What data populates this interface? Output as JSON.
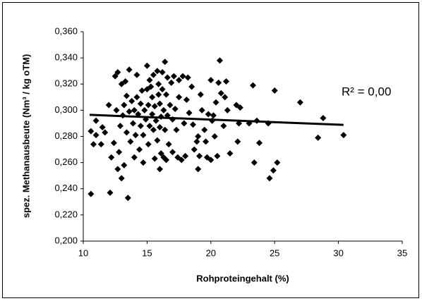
{
  "chart_data": {
    "type": "scatter",
    "x_label": "Rohproteingehalt (%)",
    "y_label": "spez. Methanausbeute (Nm³ / kg oTM)",
    "annotation": "R² = 0,00",
    "color": "#000000",
    "xlim": [
      10,
      35
    ],
    "xticks": [
      10,
      15,
      20,
      25,
      30,
      35
    ],
    "ylim": [
      0.2,
      0.36
    ],
    "yticks": [
      {
        "value": 0.2,
        "label": "0,200"
      },
      {
        "value": 0.22,
        "label": "0,220"
      },
      {
        "value": 0.24,
        "label": "0,240"
      },
      {
        "value": 0.26,
        "label": "0,260"
      },
      {
        "value": 0.28,
        "label": "0,280"
      },
      {
        "value": 0.3,
        "label": "0,300"
      },
      {
        "value": 0.32,
        "label": "0,320"
      },
      {
        "value": 0.34,
        "label": "0,340"
      },
      {
        "value": 0.36,
        "label": "0,360"
      }
    ],
    "grid": false,
    "x": [
      10.6,
      10.6,
      10.8,
      11.0,
      11.0,
      11.4,
      11.5,
      11.7,
      12.0,
      12.1,
      12.2,
      12.4,
      12.5,
      12.6,
      12.7,
      12.7,
      12.8,
      12.9,
      13.0,
      13.0,
      13.1,
      13.2,
      13.2,
      13.3,
      13.4,
      13.4,
      13.5,
      13.6,
      13.6,
      13.7,
      13.8,
      13.9,
      14.0,
      14.0,
      14.1,
      14.2,
      14.2,
      14.3,
      14.4,
      14.5,
      14.5,
      14.6,
      14.7,
      14.7,
      14.8,
      14.9,
      15.0,
      15.0,
      15.1,
      15.1,
      15.2,
      15.2,
      15.3,
      15.4,
      15.4,
      15.5,
      15.5,
      15.6,
      15.6,
      15.7,
      15.8,
      15.8,
      15.9,
      15.9,
      16.0,
      16.0,
      16.0,
      16.1,
      16.1,
      16.2,
      16.2,
      16.3,
      16.3,
      16.4,
      16.4,
      16.5,
      16.5,
      16.6,
      16.6,
      16.7,
      16.8,
      16.9,
      17.0,
      17.0,
      17.1,
      17.2,
      17.3,
      17.4,
      17.5,
      17.5,
      17.7,
      17.8,
      17.9,
      18.0,
      18.1,
      18.2,
      18.3,
      18.5,
      18.6,
      18.7,
      18.9,
      19.0,
      19.0,
      19.1,
      19.2,
      19.3,
      19.5,
      19.6,
      19.7,
      19.8,
      20.0,
      20.0,
      20.1,
      20.2,
      20.3,
      20.4,
      20.5,
      20.6,
      20.7,
      20.8,
      21.0,
      21.1,
      21.2,
      21.3,
      21.5,
      22.0,
      22.1,
      22.2,
      22.3,
      23.0,
      23.3,
      23.4,
      23.6,
      23.8,
      24.5,
      24.6,
      24.9,
      25.0,
      25.2,
      27.0,
      28.4,
      28.8,
      30.4
    ],
    "y": [
      0.236,
      0.284,
      0.274,
      0.292,
      0.281,
      0.274,
      0.287,
      0.283,
      0.304,
      0.237,
      0.264,
      0.275,
      0.326,
      0.3,
      0.329,
      0.255,
      0.268,
      0.288,
      0.248,
      0.32,
      0.296,
      0.258,
      0.304,
      0.322,
      0.283,
      0.311,
      0.233,
      0.331,
      0.299,
      0.276,
      0.307,
      0.29,
      0.264,
      0.3,
      0.281,
      0.327,
      0.31,
      0.297,
      0.27,
      0.288,
      0.305,
      0.315,
      0.281,
      0.26,
      0.3,
      0.293,
      0.316,
      0.334,
      0.274,
      0.304,
      0.323,
      0.288,
      0.318,
      0.31,
      0.297,
      0.327,
      0.285,
      0.263,
      0.303,
      0.292,
      0.33,
      0.277,
      0.312,
      0.32,
      0.255,
      0.305,
      0.287,
      0.267,
      0.295,
      0.329,
      0.316,
      0.264,
      0.3,
      0.337,
      0.285,
      0.262,
      0.312,
      0.325,
      0.296,
      0.274,
      0.304,
      0.321,
      0.293,
      0.268,
      0.326,
      0.301,
      0.285,
      0.264,
      0.323,
      0.31,
      0.262,
      0.326,
      0.29,
      0.265,
      0.308,
      0.325,
      0.298,
      0.318,
      0.289,
      0.27,
      0.276,
      0.255,
      0.28,
      0.265,
      0.312,
      0.3,
      0.285,
      0.276,
      0.264,
      0.297,
      0.323,
      0.262,
      0.292,
      0.296,
      0.28,
      0.306,
      0.265,
      0.321,
      0.338,
      0.313,
      0.288,
      0.31,
      0.322,
      0.3,
      0.267,
      0.304,
      0.276,
      0.29,
      0.302,
      0.29,
      0.319,
      0.26,
      0.292,
      0.275,
      0.29,
      0.248,
      0.254,
      0.315,
      0.26,
      0.306,
      0.279,
      0.294,
      0.281
    ],
    "trendline": {
      "x": [
        10.5,
        30.4
      ],
      "y": [
        0.2965,
        0.2888
      ]
    }
  }
}
